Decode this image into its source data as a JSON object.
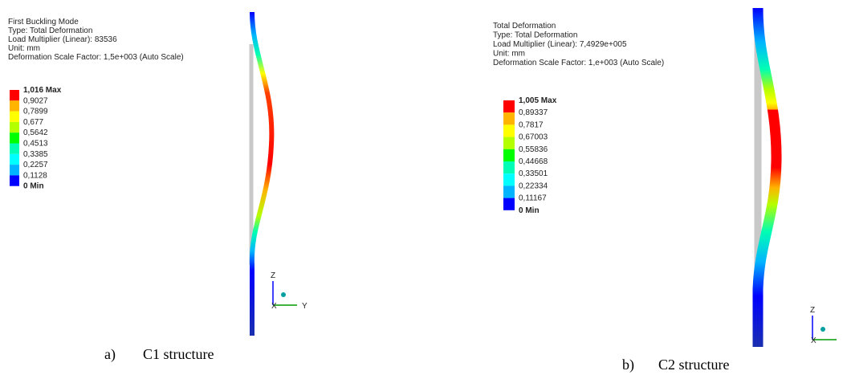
{
  "panels": [
    {
      "header": [
        "First Buckling Mode",
        "Type: Total Deformation",
        "Load Multiplier (Linear): 83536",
        "Unit: mm",
        "Deformation Scale Factor: 1,5e+003 (Auto Scale)"
      ],
      "legend": {
        "labels": [
          "1,016 Max",
          "0,9027",
          "0,7899",
          "0,677",
          "0,5642",
          "0,4513",
          "0,3385",
          "0,2257",
          "0,1128",
          "0 Min"
        ],
        "colors": [
          "#ff0000",
          "#ffb400",
          "#ffff00",
          "#b4ff00",
          "#00ff00",
          "#00ffb4",
          "#00ffff",
          "#00b4ff",
          "#0000ff"
        ]
      },
      "axes": [
        "Z",
        "Y",
        "X"
      ],
      "caption": {
        "label": "a)",
        "text": "C1 structure"
      }
    },
    {
      "header": [
        "Total Deformation",
        "Type: Total Deformation",
        "Load Multiplier (Linear): 7,4929e+005",
        "Unit: mm",
        "Deformation Scale Factor: 1,e+003 (Auto Scale)"
      ],
      "legend": {
        "labels": [
          "1,005 Max",
          "0,89337",
          "0,7817",
          "0,67003",
          "0,55836",
          "0,44668",
          "0,33501",
          "0,22334",
          "0,11167",
          "0 Min"
        ],
        "colors": [
          "#ff0000",
          "#ffb400",
          "#ffff00",
          "#b4ff00",
          "#00ff00",
          "#00ffb4",
          "#00ffff",
          "#00b4ff",
          "#0000ff"
        ]
      },
      "axes": [
        "Z",
        "X"
      ],
      "caption": {
        "label": "b)",
        "text": "C2 structure"
      }
    }
  ]
}
